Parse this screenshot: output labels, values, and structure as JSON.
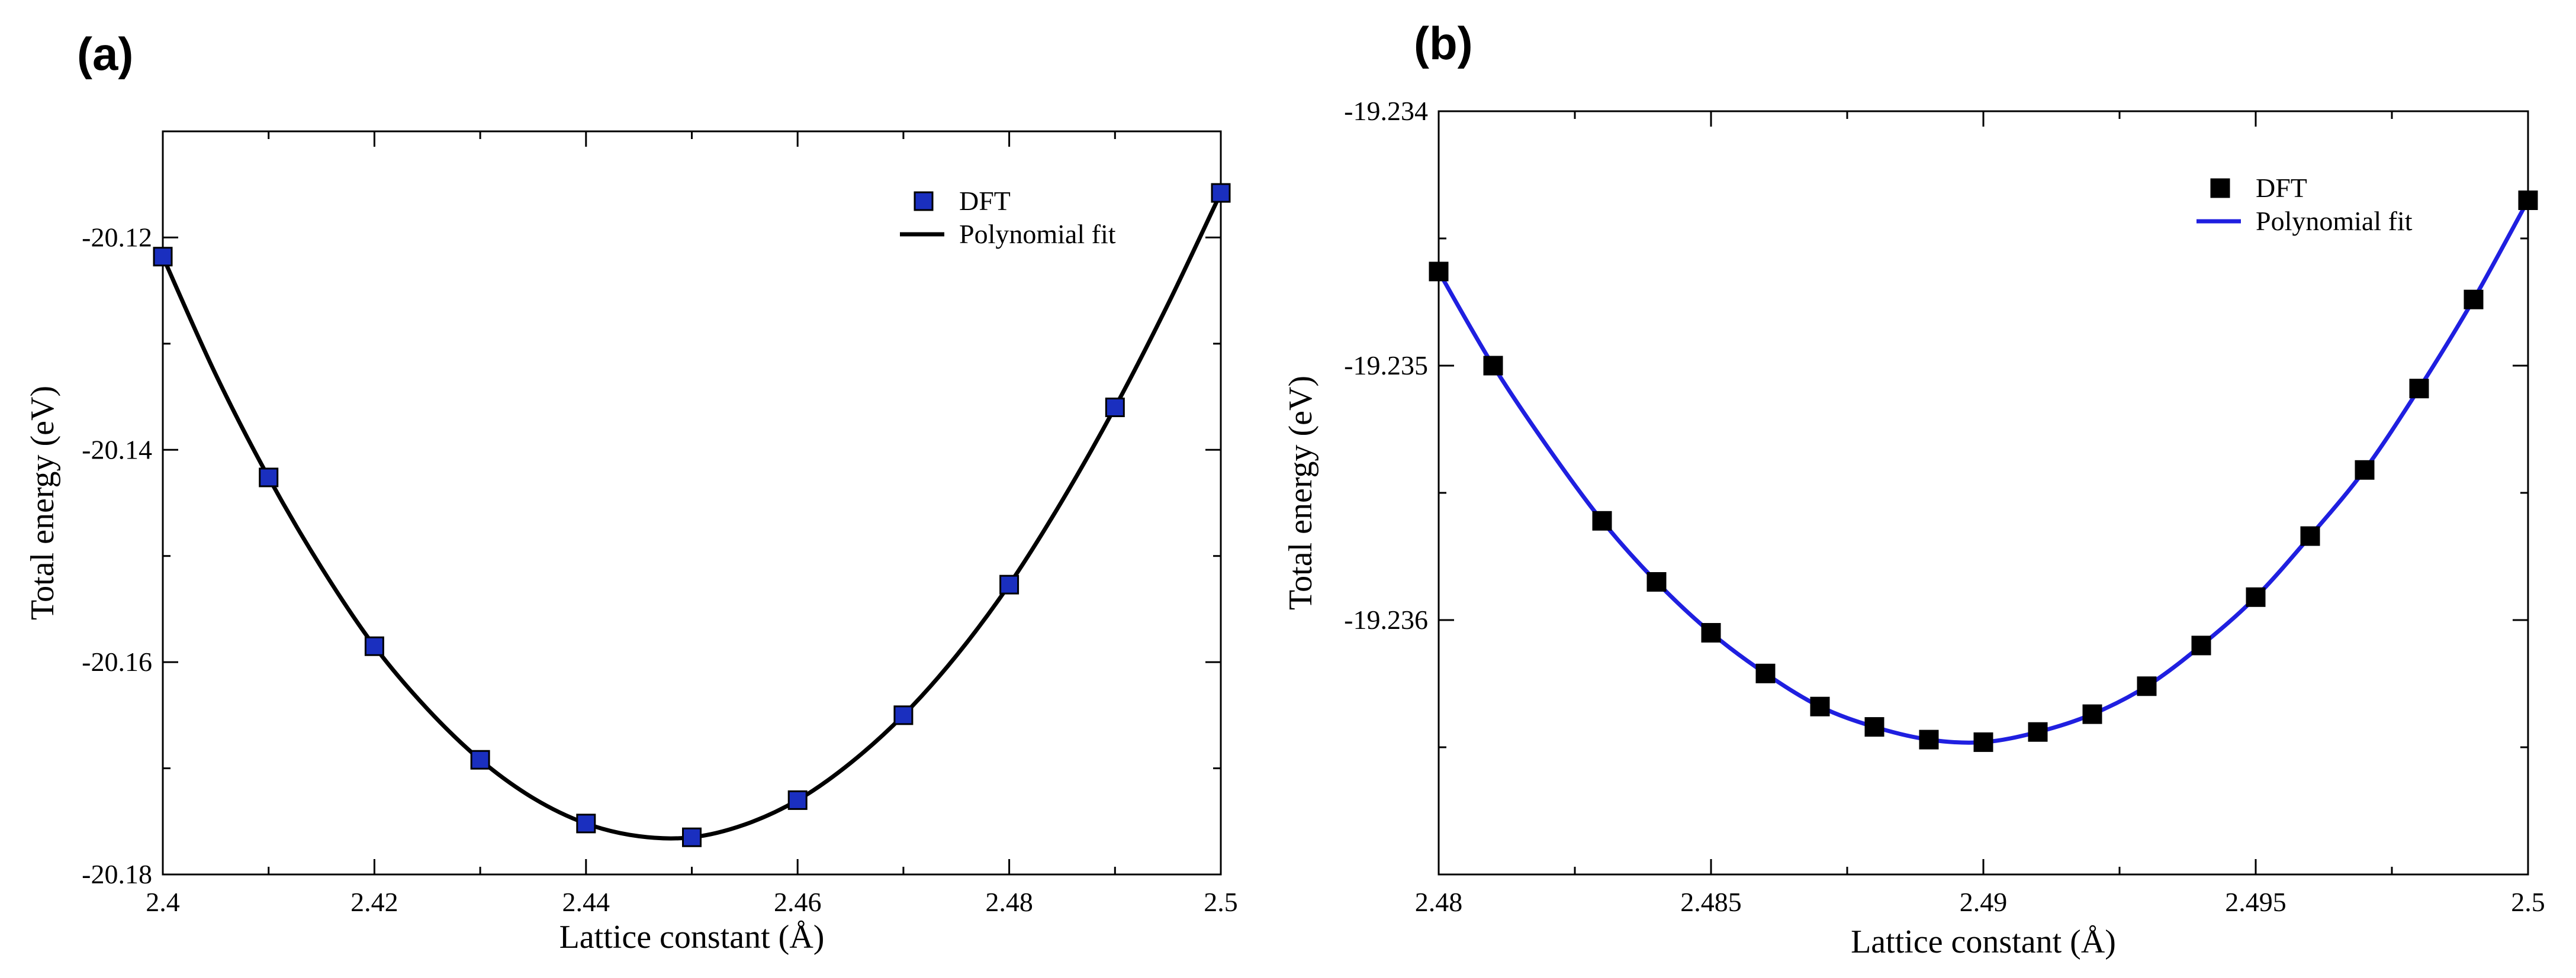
{
  "chart_data": [
    {
      "type": "scatter",
      "panel_label": "(a)",
      "xlabel": "Lattice constant (Å)",
      "ylabel": "Total energy (eV)",
      "xlim": [
        2.4,
        2.5
      ],
      "ylim": [
        -20.18,
        -20.11
      ],
      "x_ticks": [
        "2.4",
        "2.42",
        "2.44",
        "2.46",
        "2.48",
        "2.5"
      ],
      "x_tick_values": [
        2.4,
        2.42,
        2.44,
        2.46,
        2.48,
        2.5
      ],
      "y_ticks": [
        "-20.12",
        "-20.14",
        "-20.16",
        "-20.18"
      ],
      "y_tick_values": [
        -20.12,
        -20.14,
        -20.16,
        -20.18
      ],
      "legend_position": "top-right",
      "series": [
        {
          "name": "DFT",
          "kind": "markers",
          "marker_fill": "#1a2fbf",
          "marker_stroke": "#000000",
          "x": [
            2.4,
            2.41,
            2.42,
            2.43,
            2.44,
            2.45,
            2.46,
            2.47,
            2.48,
            2.49,
            2.5
          ],
          "y": [
            -20.1218,
            -20.1426,
            -20.1585,
            -20.1692,
            -20.1752,
            -20.1765,
            -20.173,
            -20.165,
            -20.1527,
            -20.136,
            -20.1158
          ]
        },
        {
          "name": "Polynomial fit",
          "kind": "line",
          "color": "#000000",
          "x": [
            2.4,
            2.405,
            2.41,
            2.415,
            2.42,
            2.425,
            2.43,
            2.435,
            2.44,
            2.445,
            2.45,
            2.455,
            2.46,
            2.465,
            2.47,
            2.475,
            2.48,
            2.485,
            2.49,
            2.495,
            2.5
          ],
          "y": [
            -20.1218,
            -20.1329,
            -20.1426,
            -20.1511,
            -20.1585,
            -20.1644,
            -20.1692,
            -20.1728,
            -20.1752,
            -20.1764,
            -20.1765,
            -20.1753,
            -20.173,
            -20.1695,
            -20.165,
            -20.1594,
            -20.1527,
            -20.1448,
            -20.136,
            -20.1263,
            -20.1158
          ]
        }
      ]
    },
    {
      "type": "scatter",
      "panel_label": "(b)",
      "xlabel": "Lattice constant (Å)",
      "ylabel": "Total energy (eV)",
      "xlim": [
        2.48,
        2.5
      ],
      "ylim": [
        -19.237,
        -19.234
      ],
      "x_ticks": [
        "2.48",
        "2.485",
        "2.49",
        "2.495",
        "2.5"
      ],
      "x_tick_values": [
        2.48,
        2.485,
        2.49,
        2.495,
        2.5
      ],
      "y_ticks": [
        "-19.234",
        "-19.235",
        "-19.236"
      ],
      "y_tick_values": [
        -19.234,
        -19.235,
        -19.236
      ],
      "legend_position": "top-right",
      "series": [
        {
          "name": "DFT",
          "kind": "markers",
          "marker_fill": "#000000",
          "marker_stroke": "#000000",
          "x": [
            2.48,
            2.481,
            2.483,
            2.484,
            2.485,
            2.486,
            2.487,
            2.488,
            2.489,
            2.49,
            2.491,
            2.492,
            2.493,
            2.494,
            2.495,
            2.496,
            2.497,
            2.498,
            2.499,
            2.5
          ],
          "y": [
            -19.23463,
            -19.235,
            -19.23561,
            -19.23585,
            -19.23605,
            -19.23621,
            -19.23634,
            -19.23642,
            -19.23647,
            -19.23648,
            -19.23644,
            -19.23637,
            -19.23626,
            -19.2361,
            -19.23591,
            -19.23567,
            -19.23541,
            -19.23509,
            -19.23474,
            -19.23435
          ]
        },
        {
          "name": "Polynomial fit",
          "kind": "line",
          "color": "#1f1fe0",
          "x": [
            2.48,
            2.481,
            2.482,
            2.483,
            2.484,
            2.485,
            2.486,
            2.487,
            2.488,
            2.489,
            2.49,
            2.491,
            2.492,
            2.493,
            2.494,
            2.495,
            2.496,
            2.497,
            2.498,
            2.499,
            2.5
          ],
          "y": [
            -19.23463,
            -19.235,
            -19.23532,
            -19.23561,
            -19.23585,
            -19.23605,
            -19.23621,
            -19.23634,
            -19.23642,
            -19.23647,
            -19.23648,
            -19.23644,
            -19.23637,
            -19.23626,
            -19.2361,
            -19.23591,
            -19.23567,
            -19.23541,
            -19.23509,
            -19.23474,
            -19.23435
          ]
        }
      ]
    }
  ]
}
